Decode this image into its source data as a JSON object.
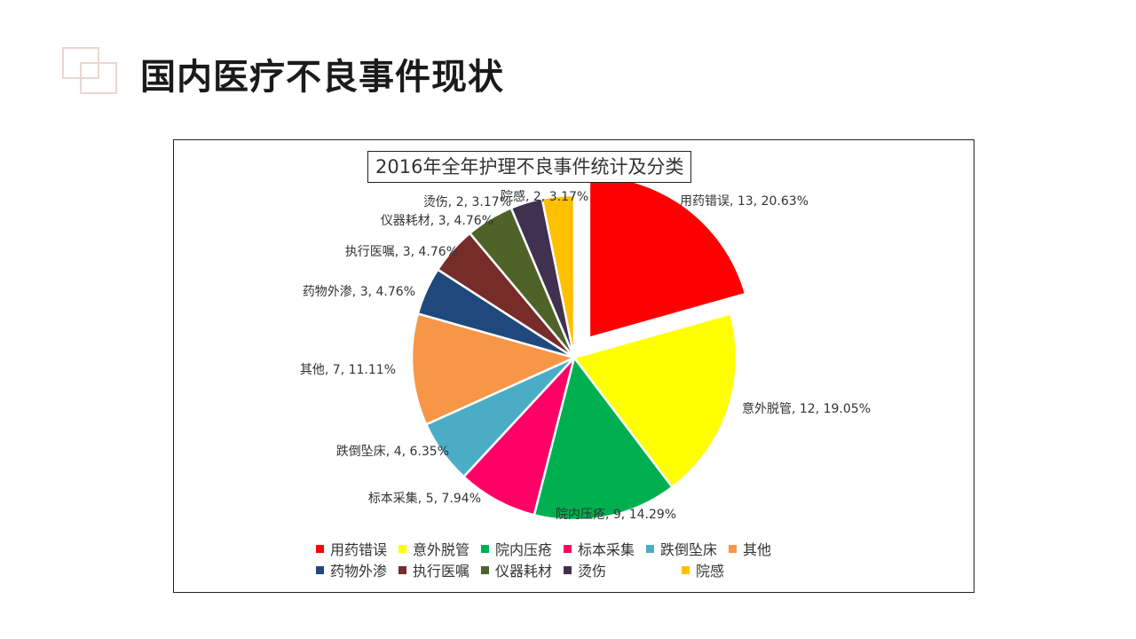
{
  "page": {
    "title": "国内医疗不良事件现状"
  },
  "chart_data": {
    "type": "pie",
    "title": "2016年全年护理不良事件统计及分类",
    "legend_position": "bottom",
    "slices": [
      {
        "name": "用药错误",
        "value": 13,
        "percent": "20.63%",
        "color": "#ff0000",
        "label": "用药错误, 13, 20.63%",
        "exploded": true
      },
      {
        "name": "意外脱管",
        "value": 12,
        "percent": "19.05%",
        "color": "#ffff00",
        "label": "意外脱管, 12, 19.05%"
      },
      {
        "name": "院内压疮",
        "value": 9,
        "percent": "14.29%",
        "color": "#00b050",
        "label": "院内压疮, 9, 14.29%"
      },
      {
        "name": "标本采集",
        "value": 5,
        "percent": "7.94%",
        "color": "#ff0066",
        "label": "标本采集, 5, 7.94%"
      },
      {
        "name": "跌倒坠床",
        "value": 4,
        "percent": "6.35%",
        "color": "#4bacc6",
        "label": "跌倒坠床, 4, 6.35%"
      },
      {
        "name": "其他",
        "value": 7,
        "percent": "11.11%",
        "color": "#f79646",
        "label": "其他, 7, 11.11%"
      },
      {
        "name": "药物外渗",
        "value": 3,
        "percent": "4.76%",
        "color": "#1f497d",
        "label": "药物外渗, 3, 4.76%"
      },
      {
        "name": "执行医嘱",
        "value": 3,
        "percent": "4.76%",
        "color": "#772c2a",
        "label": "执行医嘱, 3, 4.76%"
      },
      {
        "name": "仪器耗材",
        "value": 3,
        "percent": "4.76%",
        "color": "#4f6228",
        "label": "仪器耗材, 3, 4.76%"
      },
      {
        "name": "烫伤",
        "value": 2,
        "percent": "3.17%",
        "color": "#403151",
        "label": "烫伤, 2, 3.17%"
      },
      {
        "name": "院感",
        "value": 2,
        "percent": "3.17%",
        "color": "#ffc000",
        "label": "院感, 2, 3.17%"
      }
    ]
  }
}
